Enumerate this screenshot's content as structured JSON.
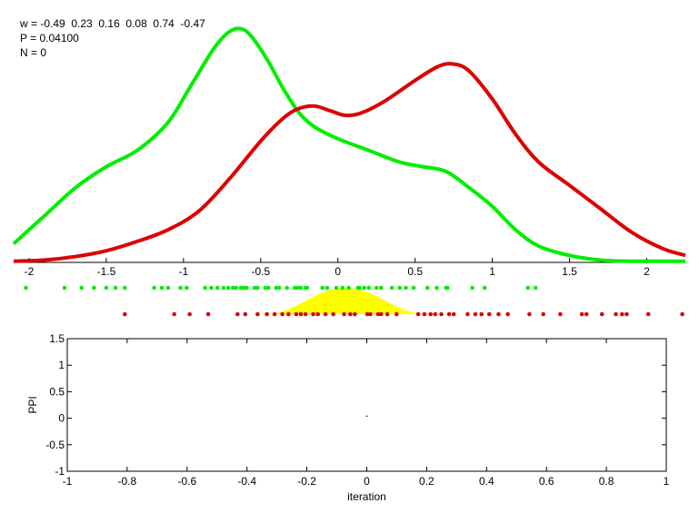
{
  "info": {
    "w_text": "w = -0.49  0.23  0.16  0.08  0.74  -0.47",
    "p_text": "P = 0.04100",
    "n_text": "N = 0"
  },
  "chart_data": [
    {
      "type": "line",
      "xlim": [
        -2.1,
        2.25
      ],
      "ylim": [
        0,
        1
      ],
      "grid": false,
      "xticks": [
        -2,
        -1.5,
        -1,
        -0.5,
        0,
        0.5,
        1,
        1.5,
        2
      ],
      "xtick_labels": [
        "-2",
        "-1.5",
        "-1",
        "-0.5",
        "0",
        "0.5",
        "1",
        "1.5",
        "2"
      ],
      "colors": {
        "green": "#00ee00",
        "red": "#dd0000",
        "yellow": "#ffff00"
      },
      "series": [
        {
          "color": "green",
          "x": [
            -2.1,
            -1.9,
            -1.7,
            -1.5,
            -1.3,
            -1.1,
            -0.95,
            -0.8,
            -0.7,
            -0.62,
            -0.55,
            -0.45,
            -0.35,
            -0.25,
            -0.15,
            0.0,
            0.2,
            0.4,
            0.55,
            0.7,
            0.85,
            1.0,
            1.15,
            1.3,
            1.5,
            1.7,
            1.9,
            2.25
          ],
          "y": [
            0.08,
            0.2,
            0.32,
            0.41,
            0.48,
            0.6,
            0.76,
            0.92,
            0.99,
            1.0,
            0.96,
            0.86,
            0.74,
            0.64,
            0.58,
            0.53,
            0.48,
            0.43,
            0.41,
            0.39,
            0.32,
            0.24,
            0.14,
            0.07,
            0.03,
            0.01,
            0.005,
            0.005
          ]
        },
        {
          "color": "red",
          "x": [
            -2.1,
            -1.9,
            -1.7,
            -1.5,
            -1.3,
            -1.1,
            -0.9,
            -0.7,
            -0.5,
            -0.35,
            -0.25,
            -0.15,
            -0.05,
            0.05,
            0.15,
            0.3,
            0.5,
            0.65,
            0.75,
            0.85,
            1.0,
            1.15,
            1.3,
            1.5,
            1.7,
            1.9,
            2.1,
            2.25
          ],
          "y": [
            0.005,
            0.01,
            0.025,
            0.05,
            0.09,
            0.14,
            0.22,
            0.36,
            0.52,
            0.62,
            0.66,
            0.67,
            0.65,
            0.63,
            0.64,
            0.69,
            0.78,
            0.84,
            0.85,
            0.82,
            0.7,
            0.55,
            0.43,
            0.33,
            0.23,
            0.13,
            0.06,
            0.03
          ]
        }
      ]
    },
    {
      "type": "scatter",
      "xlim": [
        -2.1,
        2.25
      ],
      "green_points": [
        -2.02,
        -1.77,
        -1.66,
        -1.58,
        -1.5,
        -1.44,
        -1.38,
        -1.19,
        -1.14,
        -1.1,
        -1.02,
        -0.98,
        -0.86,
        -0.82,
        -0.78,
        -0.74,
        -0.71,
        -0.68,
        -0.66,
        -0.63,
        -0.61,
        -0.59,
        -0.54,
        -0.52,
        -0.47,
        -0.45,
        -0.4,
        -0.38,
        -0.33,
        -0.28,
        -0.26,
        -0.24,
        -0.21,
        -0.2,
        -0.1,
        -0.07,
        -0.01,
        0.03,
        0.07,
        0.13,
        0.14,
        0.17,
        0.2,
        0.25,
        0.28,
        0.35,
        0.4,
        0.44,
        0.49,
        0.58,
        0.64,
        0.7,
        0.71,
        0.87,
        0.95,
        1.23,
        1.28
      ],
      "red_points": [
        -1.38,
        -1.06,
        -0.96,
        -0.84,
        -0.65,
        -0.6,
        -0.52,
        -0.46,
        -0.41,
        -0.36,
        -0.32,
        -0.27,
        -0.24,
        -0.21,
        -0.16,
        -0.13,
        -0.08,
        -0.03,
        0.04,
        0.08,
        0.11,
        0.19,
        0.21,
        0.26,
        0.28,
        0.32,
        0.38,
        0.52,
        0.56,
        0.6,
        0.63,
        0.67,
        0.72,
        0.75,
        0.84,
        0.89,
        0.93,
        0.98,
        1.04,
        1.1,
        1.24,
        1.33,
        1.44,
        1.58,
        1.61,
        1.71,
        1.8,
        1.84,
        1.87,
        2.01,
        2.23
      ],
      "yellow_density": {
        "x": [
          -0.55,
          -0.4,
          -0.3,
          -0.2,
          -0.1,
          0.0,
          0.1,
          0.2,
          0.3,
          0.4,
          0.5,
          0.6
        ],
        "y": [
          0.0,
          0.05,
          0.25,
          0.55,
          0.85,
          1.0,
          1.0,
          0.85,
          0.55,
          0.25,
          0.05,
          0.0
        ]
      }
    },
    {
      "type": "scatter",
      "xlabel": "iteration",
      "ylabel": "PPI",
      "xlim": [
        -1,
        1
      ],
      "ylim": [
        -1,
        1.5
      ],
      "grid": false,
      "xticks": [
        -1,
        -0.8,
        -0.6,
        -0.4,
        -0.2,
        0,
        0.2,
        0.4,
        0.6,
        0.8,
        1
      ],
      "xtick_labels": [
        "-1",
        "-0.8",
        "-0.6",
        "-0.4",
        "-0.2",
        "0",
        "0.2",
        "0.4",
        "0.6",
        "0.8",
        "1"
      ],
      "yticks": [
        -1,
        -0.5,
        0,
        0.5,
        1,
        1.5
      ],
      "ytick_labels": [
        "-1",
        "-0.5",
        "0",
        "0.5",
        "1",
        "1.5"
      ],
      "points": [
        {
          "x": 0,
          "y": 0.04
        }
      ]
    }
  ]
}
